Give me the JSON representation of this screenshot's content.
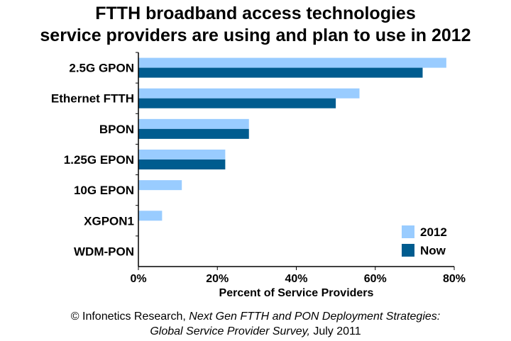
{
  "title_line1": "FTTH broadband access technologies",
  "title_line2": "service providers are using and plan to use in 2012",
  "footer": {
    "line1_prefix": "© Infonetics Research, ",
    "line1_italic": "Next Gen FTTH and PON Deployment Strategies:",
    "line2_italic": "Global Service Provider Survey,",
    "line2_suffix": " July 2011"
  },
  "chart_data": {
    "type": "bar",
    "orientation": "horizontal",
    "categories": [
      "2.5G GPON",
      "Ethernet FTTH",
      "BPON",
      "1.25G EPON",
      "10G EPON",
      "XGPON1",
      "WDM-PON"
    ],
    "series": [
      {
        "name": "2012",
        "color": "#99ccff",
        "values": [
          78,
          56,
          28,
          22,
          11,
          6,
          0
        ]
      },
      {
        "name": "Now",
        "color": "#005c8f",
        "values": [
          72,
          50,
          28,
          22,
          0,
          0,
          0
        ]
      }
    ],
    "xlabel": "Percent of Service Providers",
    "xlim": [
      0,
      80
    ],
    "xticks": [
      0,
      20,
      40,
      60,
      80
    ],
    "tick_labels": [
      "0%",
      "20%",
      "40%",
      "60%",
      "80%"
    ],
    "grid": false,
    "legend": "bottom-right"
  }
}
